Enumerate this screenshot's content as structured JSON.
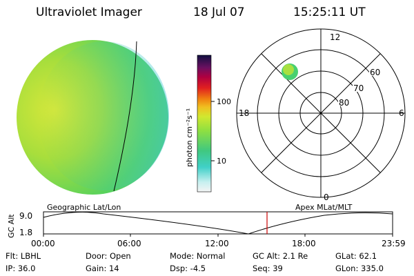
{
  "header": {
    "instrument": "Ultraviolet Imager",
    "date": "18 Jul 07",
    "time": "15:25:11 UT"
  },
  "colorbar": {
    "unit_label": "photon cm⁻²s⁻¹",
    "ticks": [
      "100",
      "10"
    ]
  },
  "polar_plot": {
    "mlt_labels": {
      "top": "12",
      "bottom": "0",
      "left": "18",
      "right": "6"
    },
    "lat_labels": [
      "60",
      "70",
      "80"
    ]
  },
  "coord_labels": {
    "left": "Geographic Lat/Lon",
    "right": "Apex MLat/MLT"
  },
  "altitude_plot": {
    "axis_label": "GC Alt",
    "y_max": "9.0",
    "y_min": "1.8",
    "time_ticks": [
      "00:00",
      "06:00",
      "12:00",
      "18:00",
      "23:59"
    ],
    "current_time_color": "#cc0000"
  },
  "info": {
    "flt": "Flt: LBHL",
    "ip": "IP: 36.0",
    "door": "Door: Open",
    "gain": "Gain: 14",
    "mode": "Mode: Normal",
    "dsp": "Dsp:   -4.5",
    "gcalt": "GC Alt: 2.1 Re",
    "seq": "Seq: 39",
    "glat": "GLat:   62.1",
    "glon": "GLon: 335.0"
  }
}
